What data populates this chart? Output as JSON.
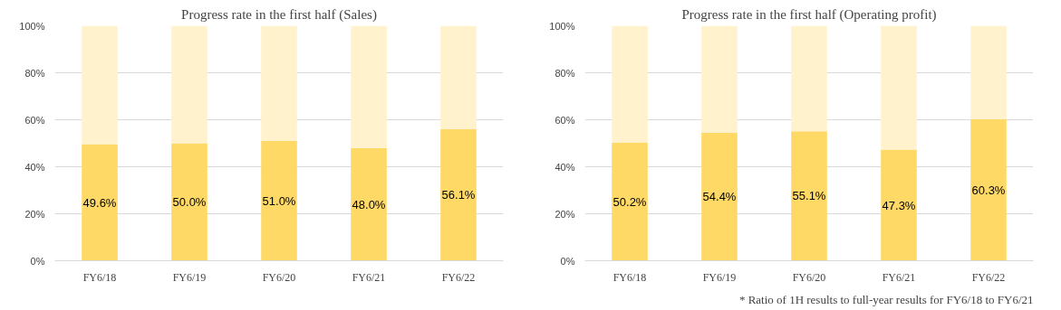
{
  "chart_data": [
    {
      "type": "bar",
      "title": "Progress rate in the first half (Sales)",
      "categories": [
        "FY6/18",
        "FY6/19",
        "FY6/20",
        "FY6/21",
        "FY6/22"
      ],
      "stacked": true,
      "grid": "y",
      "ylim": [
        0,
        100
      ],
      "yticks": [
        {
          "value": 0,
          "label": "0%"
        },
        {
          "value": 20,
          "label": "20%"
        },
        {
          "value": 40,
          "label": "40%"
        },
        {
          "value": 60,
          "label": "60%"
        },
        {
          "value": 80,
          "label": "80%"
        },
        {
          "value": 100,
          "label": "100%"
        }
      ],
      "series": [
        {
          "color": "#ffd966",
          "values": [
            49.6,
            50.0,
            51.0,
            48.0,
            56.1
          ],
          "value_labels": [
            "49.6%",
            "50.0%",
            "51.0%",
            "48.0%",
            "56.1%"
          ]
        },
        {
          "color": "#fff2cc",
          "values": [
            50.4,
            50.0,
            49.0,
            52.0,
            43.9
          ]
        }
      ]
    },
    {
      "type": "bar",
      "title": "Progress rate in the first half (Operating profit)",
      "categories": [
        "FY6/18",
        "FY6/19",
        "FY6/20",
        "FY6/21",
        "FY6/22"
      ],
      "stacked": true,
      "grid": "y",
      "ylim": [
        0,
        100
      ],
      "yticks": [
        {
          "value": 0,
          "label": "0%"
        },
        {
          "value": 20,
          "label": "20%"
        },
        {
          "value": 40,
          "label": "40%"
        },
        {
          "value": 60,
          "label": "60%"
        },
        {
          "value": 80,
          "label": "80%"
        },
        {
          "value": 100,
          "label": "100%"
        }
      ],
      "series": [
        {
          "color": "#ffd966",
          "values": [
            50.2,
            54.4,
            55.1,
            47.3,
            60.3
          ],
          "value_labels": [
            "50.2%",
            "54.4%",
            "55.1%",
            "47.3%",
            "60.3%"
          ]
        },
        {
          "color": "#fff2cc",
          "values": [
            49.8,
            45.6,
            44.9,
            52.7,
            39.7
          ]
        }
      ],
      "annotations": [
        "* Ratio of 1H results to full-year results for FY6/18 to FY6/21"
      ]
    }
  ]
}
